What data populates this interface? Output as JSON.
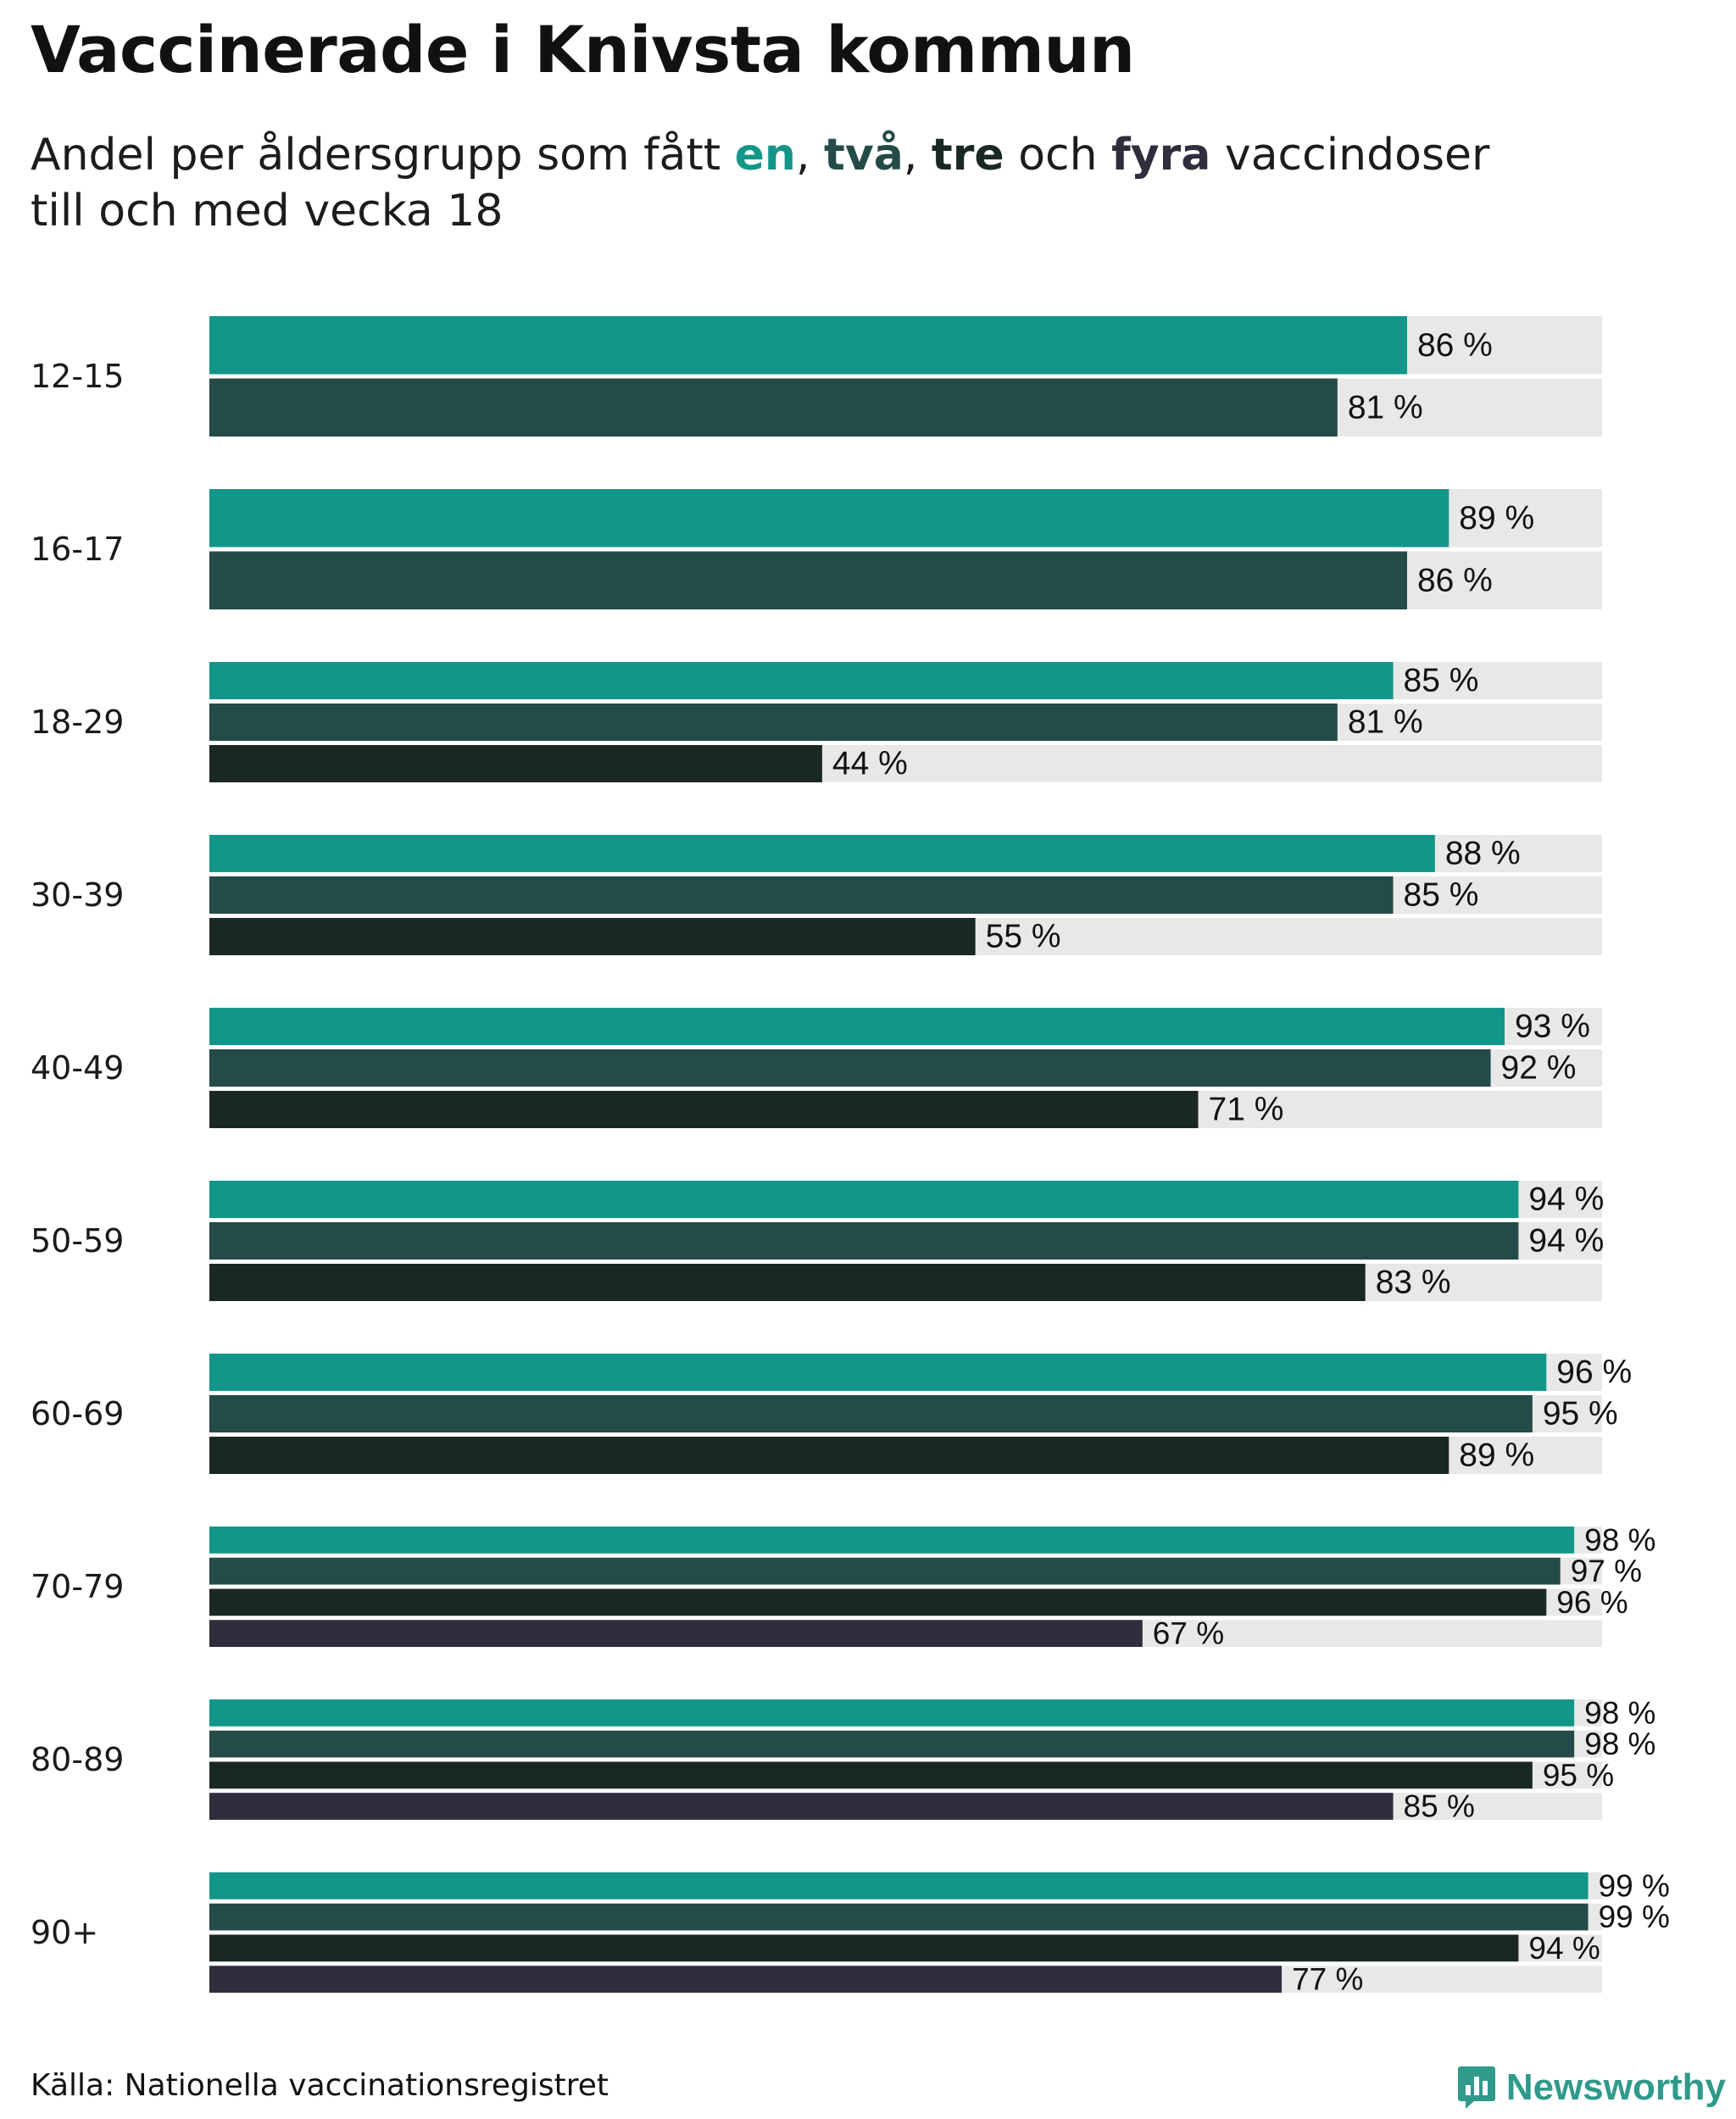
{
  "title": "Vaccinerade i Knivsta kommun",
  "subtitle": {
    "prefix": "Andel per åldersgrupp som fått ",
    "k1": "en",
    "sep1": ", ",
    "k2": "två",
    "sep2": ", ",
    "k3": "tre",
    "mid": " och ",
    "k4": "fyra",
    "suffix": " vaccindoser",
    "line2": "till och med vecka 18"
  },
  "chart_data": {
    "type": "bar",
    "orientation": "horizontal",
    "title": "Vaccinerade i Knivsta kommun",
    "xlabel": "",
    "ylabel": "",
    "xlim": [
      0,
      100
    ],
    "value_suffix": " %",
    "categories": [
      "12-15",
      "16-17",
      "18-29",
      "30-39",
      "40-49",
      "50-59",
      "60-69",
      "70-79",
      "80-89",
      "90+"
    ],
    "series": [
      {
        "name": "en",
        "color": "#13968a",
        "values": [
          86,
          89,
          85,
          88,
          93,
          94,
          96,
          98,
          98,
          99
        ]
      },
      {
        "name": "två",
        "color": "#244b48",
        "values": [
          81,
          86,
          81,
          85,
          92,
          94,
          95,
          97,
          98,
          99
        ]
      },
      {
        "name": "tre",
        "color": "#1a2825",
        "values": [
          null,
          null,
          44,
          55,
          71,
          83,
          89,
          96,
          95,
          94
        ]
      },
      {
        "name": "fyra",
        "color": "#2f2e3d",
        "values": [
          null,
          null,
          null,
          null,
          null,
          null,
          null,
          67,
          85,
          77
        ]
      }
    ],
    "background_track_color": "#e8e8e8"
  },
  "source": "Källa: Nationella vaccinationsregistret",
  "brand": {
    "name": "Newsworthy",
    "logo_icon": "bar-chart-logo-icon",
    "color": "#2f9a8a"
  }
}
